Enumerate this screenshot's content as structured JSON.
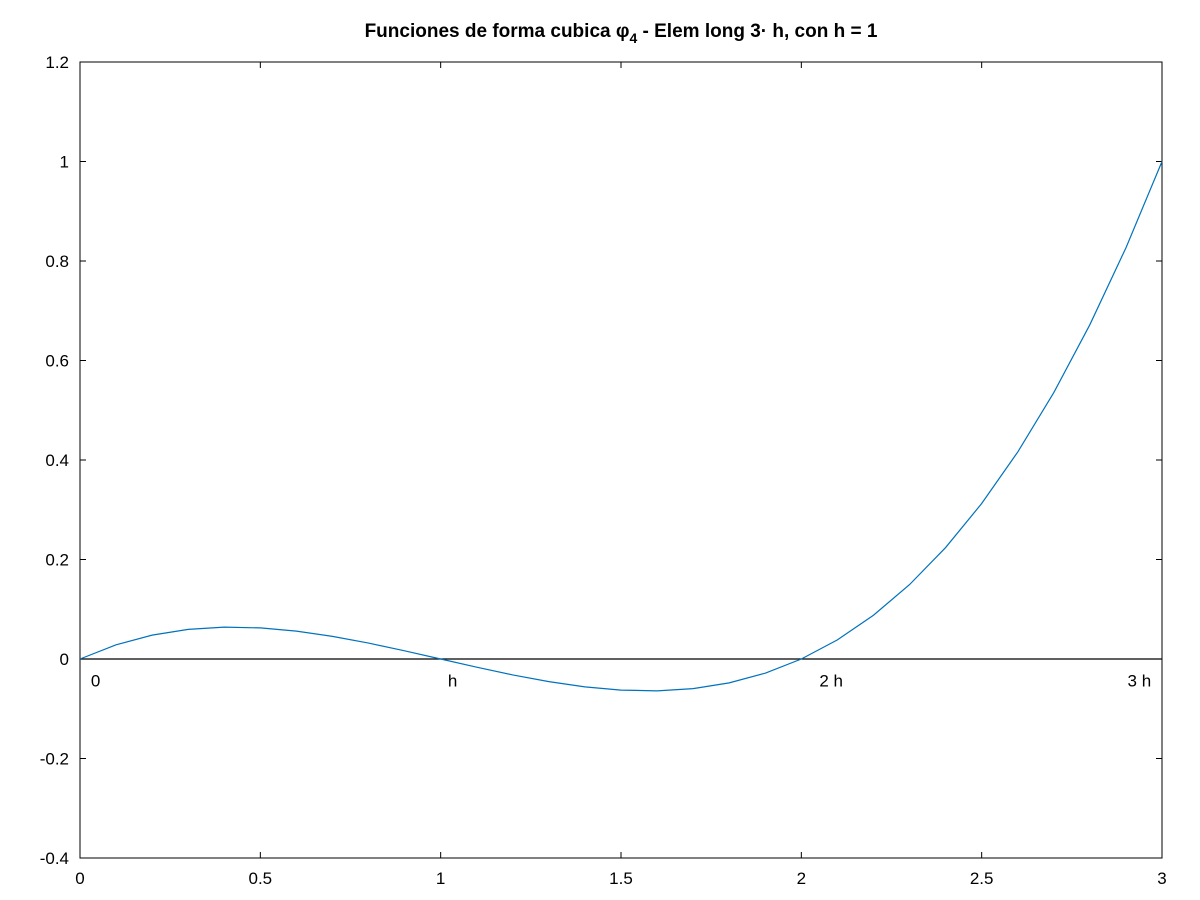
{
  "chart_data": {
    "type": "line",
    "title": {
      "prefix": "Funciones de forma cubica φ",
      "subscript": "4",
      "suffix": " - Elem long 3· h, con h = 1"
    },
    "xlabel": "",
    "ylabel": "",
    "xlim": [
      0,
      3
    ],
    "ylim": [
      -0.4,
      1.2
    ],
    "xticks": [
      0,
      0.5,
      1,
      1.5,
      2,
      2.5,
      3
    ],
    "xtick_labels": [
      "0",
      "0.5",
      "1",
      "1.5",
      "2",
      "2.5",
      "3"
    ],
    "yticks": [
      -0.4,
      -0.2,
      0,
      0.2,
      0.4,
      0.6,
      0.8,
      1,
      1.2
    ],
    "ytick_labels": [
      "-0.4",
      "-0.2",
      "0",
      "0.2",
      "0.4",
      "0.6",
      "0.8",
      "1",
      "1.2"
    ],
    "grid": false,
    "series": [
      {
        "color": "#0072bd",
        "x": [
          0,
          0.1,
          0.2,
          0.3,
          0.4,
          0.5,
          0.6,
          0.7,
          0.8,
          0.9,
          1.0,
          1.1,
          1.2,
          1.3,
          1.4,
          1.5,
          1.6,
          1.7,
          1.8,
          1.9,
          2.0,
          2.1,
          2.2,
          2.3,
          2.4,
          2.5,
          2.6,
          2.7,
          2.8,
          2.9,
          3.0
        ],
        "y": [
          0,
          0.0285,
          0.048,
          0.0595,
          0.064,
          0.0625,
          0.056,
          0.0455,
          0.032,
          0.0165,
          0,
          -0.0165,
          -0.032,
          -0.0455,
          -0.056,
          -0.0625,
          -0.064,
          -0.0595,
          -0.048,
          -0.0285,
          0,
          0.0385,
          0.088,
          0.1495,
          0.224,
          0.3125,
          0.416,
          0.5355,
          0.672,
          0.8265,
          1.0
        ]
      }
    ],
    "reference_lines": [
      {
        "axis": "y",
        "value": 0,
        "color": "#000000"
      }
    ],
    "annotations": [
      {
        "text": "0",
        "x": 0.03,
        "y": -0.055
      },
      {
        "text": "h",
        "x": 1.02,
        "y": -0.055
      },
      {
        "text": "2 h",
        "x": 2.05,
        "y": -0.055
      },
      {
        "text": "3 h",
        "x": 2.97,
        "y": -0.055
      }
    ]
  }
}
